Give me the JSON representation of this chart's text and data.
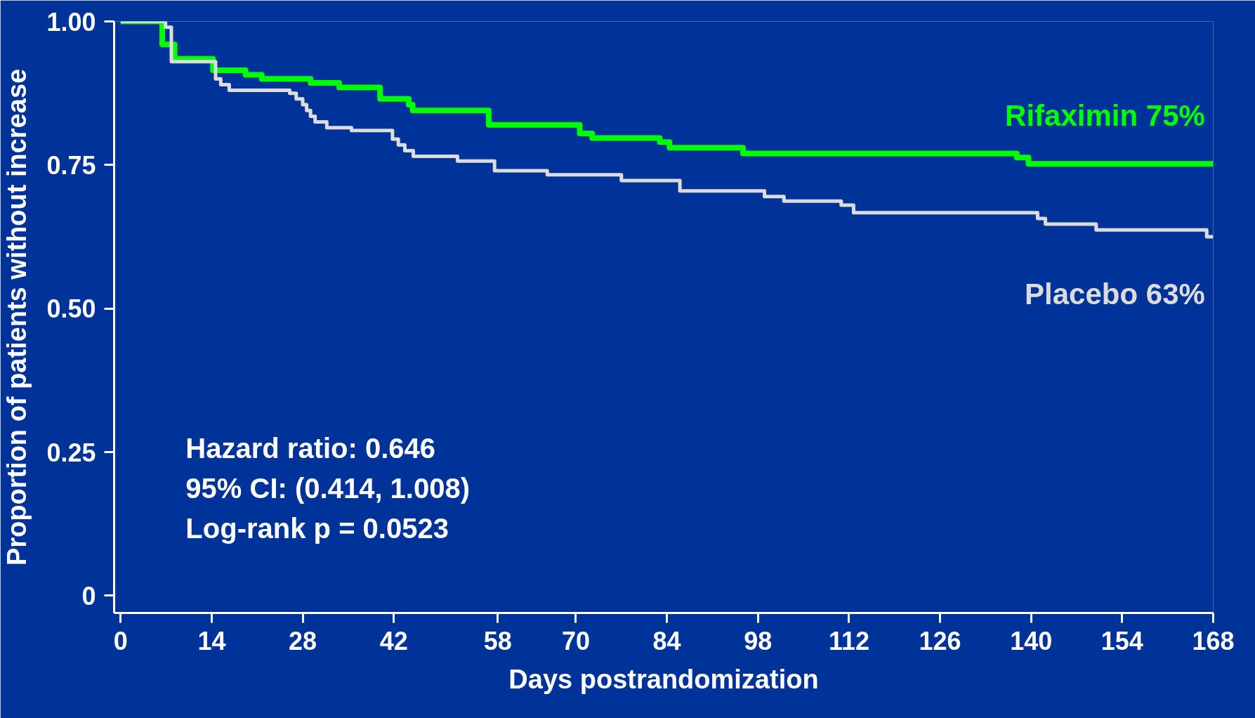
{
  "chart_data": {
    "type": "step",
    "xlabel": "Days postrandomization",
    "ylabel": "Proportion of patients without increase",
    "xlim": [
      -1,
      168
    ],
    "ylim": [
      -0.03,
      1.0
    ],
    "xticks": [
      0,
      14,
      28,
      42,
      58,
      70,
      84,
      98,
      112,
      126,
      140,
      154,
      168
    ],
    "yticks": [
      0,
      {
        "value": 0.25,
        "label": "0.25"
      },
      {
        "value": 0.5,
        "label": "0.50"
      },
      {
        "value": 0.75,
        "label": "0.75"
      },
      {
        "value": 1.0,
        "label": "1.00"
      }
    ],
    "grid": false,
    "series": [
      {
        "name": "Rifaximin  75%",
        "color": "#00ff00",
        "x": [
          0,
          6.4,
          8.3,
          14.2,
          19.2,
          21.7,
          29.2,
          33.6,
          39.9,
          44.3,
          44.9,
          56.6,
          70.6,
          72.5,
          82.9,
          84.4,
          95.7,
          137.8,
          139.6,
          168
        ],
        "values": [
          1.0,
          0.96,
          0.935,
          0.915,
          0.907,
          0.9,
          0.893,
          0.885,
          0.865,
          0.855,
          0.845,
          0.82,
          0.805,
          0.797,
          0.79,
          0.78,
          0.77,
          0.763,
          0.752,
          0.752
        ]
      },
      {
        "name": "Placebo  63%",
        "color": "#dcdcdc",
        "x": [
          0,
          6.9,
          7.8,
          14.6,
          15.4,
          16.7,
          26,
          27,
          28,
          28.6,
          29.2,
          29.9,
          31.7,
          35.5,
          41.8,
          42.7,
          43.7,
          45,
          51.8,
          57.5,
          65.6,
          77,
          86,
          99,
          102,
          110.8,
          112.7,
          141,
          142.2,
          150,
          167,
          168
        ],
        "values": [
          1.0,
          0.99,
          0.93,
          0.9,
          0.89,
          0.88,
          0.875,
          0.865,
          0.855,
          0.845,
          0.835,
          0.825,
          0.815,
          0.81,
          0.795,
          0.785,
          0.775,
          0.765,
          0.757,
          0.74,
          0.733,
          0.723,
          0.705,
          0.695,
          0.687,
          0.68,
          0.667,
          0.657,
          0.647,
          0.637,
          0.625,
          0.625
        ]
      }
    ],
    "annotations": [
      "Hazard ratio: 0.646",
      "95% CI: (0.414, 1.008)",
      "Log-rank p = 0.0523"
    ]
  }
}
